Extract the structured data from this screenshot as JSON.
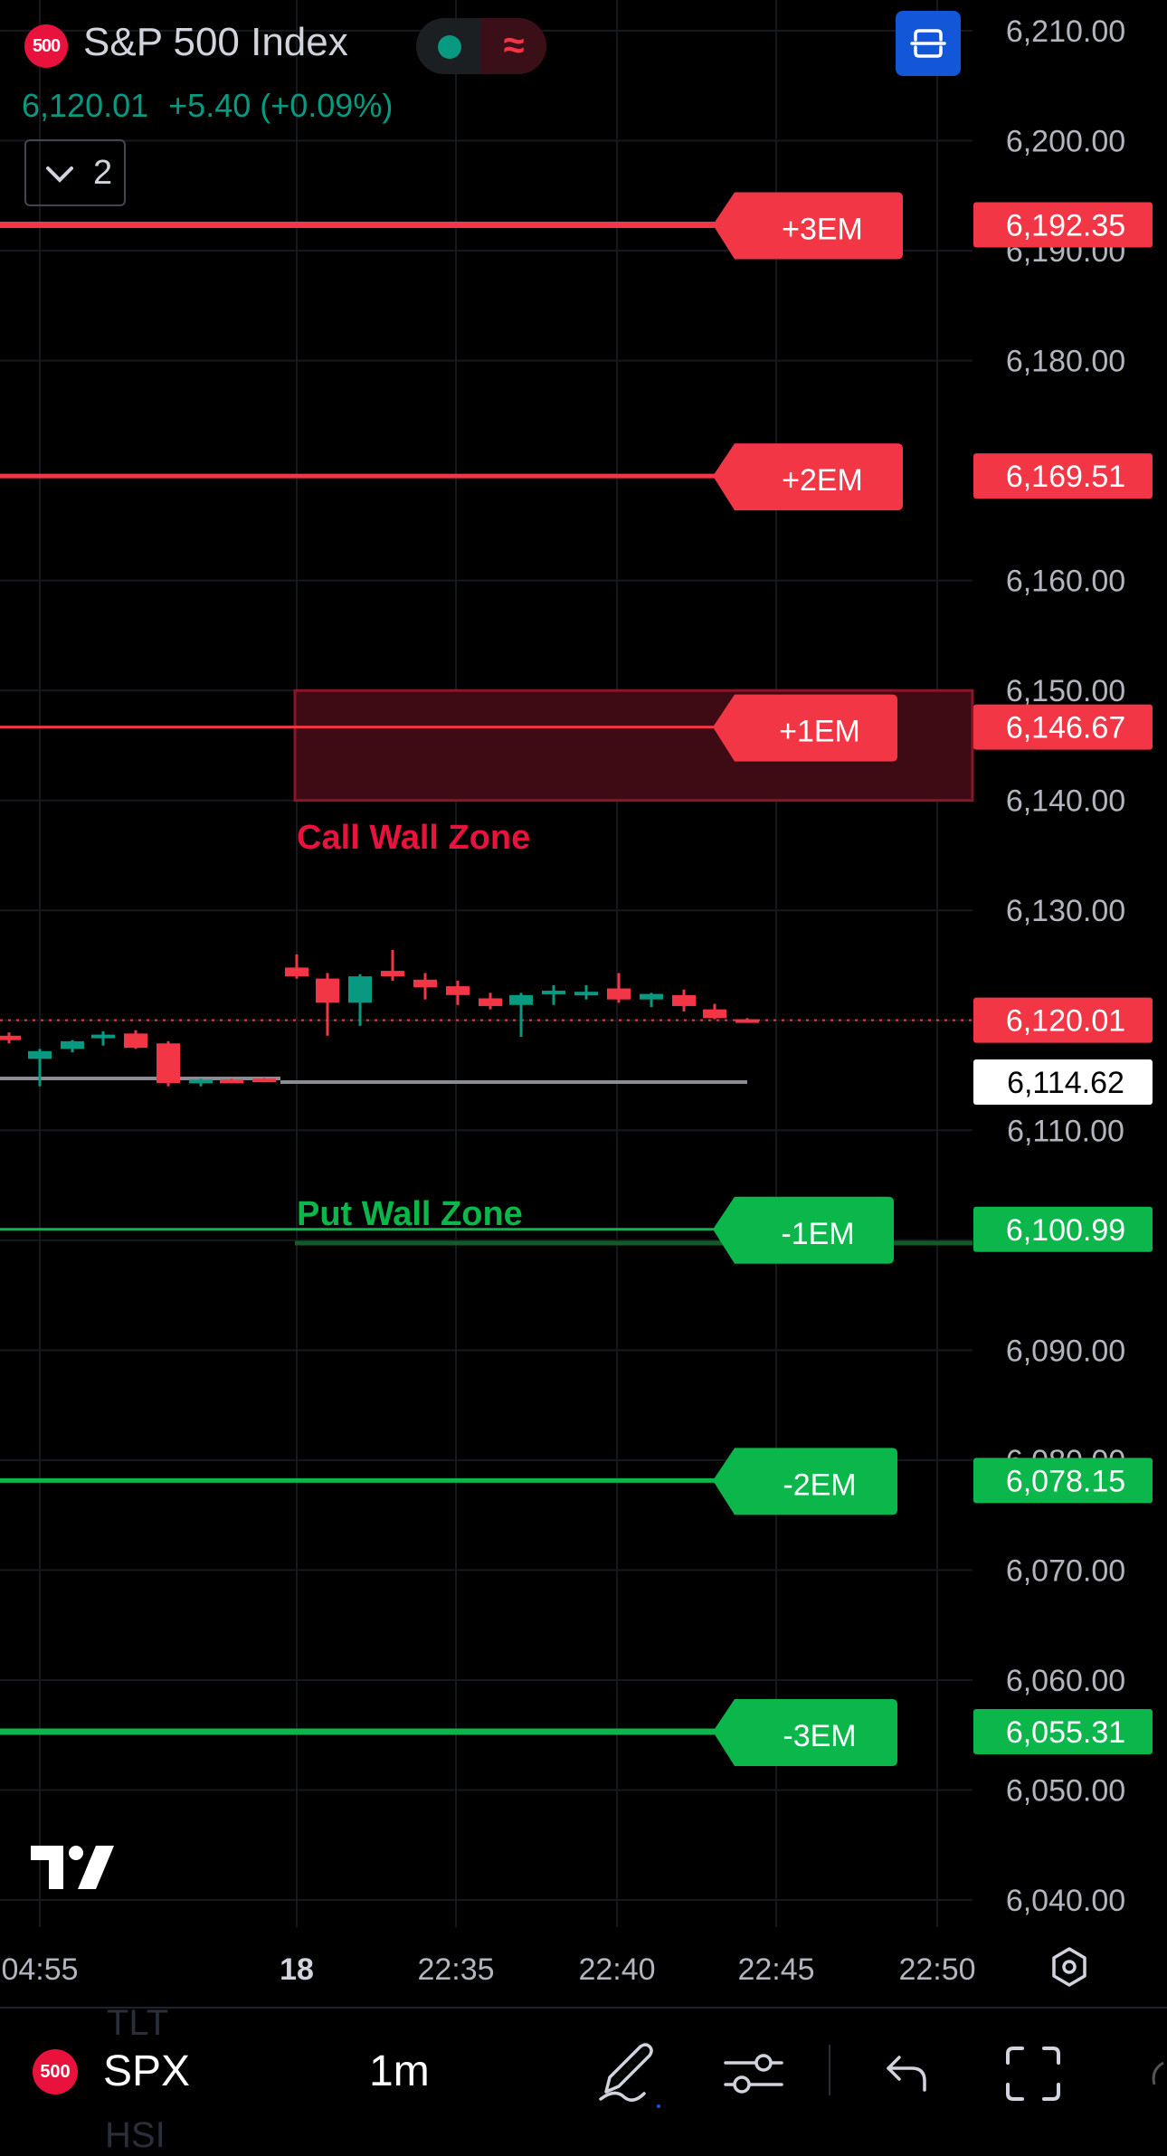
{
  "header": {
    "symbol_badge": "500",
    "title": "S&P 500 Index",
    "price": "6,120.01",
    "change": "+5.40 (+0.09%)",
    "collapse_count": "2"
  },
  "chart_data": {
    "type": "candlestick",
    "y_axis": {
      "range": [
        6036,
        6213
      ],
      "ticks": [
        "6,210.00",
        "6,200.00",
        "6,190.00",
        "6,180.00",
        "6,160.00",
        "6,150.00",
        "6,140.00",
        "6,130.00",
        "6,110.00",
        "6,090.00",
        "6,080.00",
        "6,070.00",
        "6,060.00",
        "6,050.00",
        "6,040.00"
      ],
      "tick_values": [
        6210,
        6200,
        6190,
        6180,
        6160,
        6150,
        6140,
        6130,
        6110,
        6090,
        6080,
        6070,
        6060,
        6050,
        6040
      ]
    },
    "x_axis": {
      "ticks": [
        "04:55",
        "18",
        "22:35",
        "22:40",
        "22:45",
        "22:50"
      ],
      "bold_tick": "18"
    },
    "levels": [
      {
        "label": "+3EM",
        "price": 6192.35,
        "price_label": "6,192.35",
        "color": "#f23645"
      },
      {
        "label": "+2EM",
        "price": 6169.51,
        "price_label": "6,169.51",
        "color": "#f23645"
      },
      {
        "label": "+1EM",
        "price": 6146.67,
        "price_label": "6,146.67",
        "color": "#f23645"
      },
      {
        "label": "-1EM",
        "price": 6100.99,
        "price_label": "6,100.99",
        "color": "#0bb74a"
      },
      {
        "label": "-2EM",
        "price": 6078.15,
        "price_label": "6,078.15",
        "color": "#0bb74a"
      },
      {
        "label": "-3EM",
        "price": 6055.31,
        "price_label": "6,055.31",
        "color": "#0bb74a"
      }
    ],
    "zones": [
      {
        "label": "Call Wall Zone",
        "top": 6150,
        "bottom": 6140,
        "color": "#e8123c"
      },
      {
        "label": "Put Wall Zone",
        "price": 6100,
        "color": "#0bb74a"
      }
    ],
    "current_price": {
      "value": 6120.01,
      "label": "6,120.01",
      "color": "#f23645"
    },
    "reference_price": {
      "value": 6114.62,
      "label": "6,114.62"
    },
    "candles": [
      {
        "o": 6118.6,
        "h": 6118.9,
        "l": 6117.9,
        "c": 6118.2
      },
      {
        "o": 6116.5,
        "h": 6117.4,
        "l": 6114.0,
        "c": 6117.2
      },
      {
        "o": 6117.4,
        "h": 6118.2,
        "l": 6117.1,
        "c": 6118.1
      },
      {
        "o": 6118.5,
        "h": 6119.0,
        "l": 6117.7,
        "c": 6118.7
      },
      {
        "o": 6118.8,
        "h": 6119.1,
        "l": 6117.4,
        "c": 6117.5
      },
      {
        "o": 6117.9,
        "h": 6118.1,
        "l": 6114.0,
        "c": 6114.3
      },
      {
        "o": 6114.3,
        "h": 6114.7,
        "l": 6114.0,
        "c": 6114.6
      },
      {
        "o": 6114.6,
        "h": 6114.7,
        "l": 6114.3,
        "c": 6114.5
      },
      {
        "o": 6114.7,
        "h": 6114.8,
        "l": 6114.5,
        "c": 6114.6
      },
      {
        "o": 6124.8,
        "h": 6126.0,
        "l": 6123.8,
        "c": 6124.0
      },
      {
        "o": 6123.8,
        "h": 6124.3,
        "l": 6118.6,
        "c": 6121.6
      },
      {
        "o": 6121.6,
        "h": 6124.2,
        "l": 6119.5,
        "c": 6124.0
      },
      {
        "o": 6124.5,
        "h": 6126.4,
        "l": 6123.6,
        "c": 6124.0
      },
      {
        "o": 6123.7,
        "h": 6124.3,
        "l": 6121.9,
        "c": 6123.0
      },
      {
        "o": 6123.1,
        "h": 6123.6,
        "l": 6121.4,
        "c": 6122.3
      },
      {
        "o": 6122.0,
        "h": 6122.5,
        "l": 6121.0,
        "c": 6121.3
      },
      {
        "o": 6121.4,
        "h": 6122.5,
        "l": 6118.5,
        "c": 6122.3
      },
      {
        "o": 6122.6,
        "h": 6123.2,
        "l": 6121.4,
        "c": 6122.7
      },
      {
        "o": 6122.6,
        "h": 6123.2,
        "l": 6121.9,
        "c": 6122.6
      },
      {
        "o": 6122.9,
        "h": 6124.3,
        "l": 6121.6,
        "c": 6121.9
      },
      {
        "o": 6121.9,
        "h": 6122.5,
        "l": 6121.2,
        "c": 6122.4
      },
      {
        "o": 6122.3,
        "h": 6122.8,
        "l": 6120.8,
        "c": 6121.3
      },
      {
        "o": 6121.0,
        "h": 6121.5,
        "l": 6120.1,
        "c": 6120.2
      },
      {
        "o": 6120.1,
        "h": 6120.2,
        "l": 6120.0,
        "c": 6120.0
      }
    ]
  },
  "bottom_bar": {
    "symbol_badge": "500",
    "symbol": "SPX",
    "timeframe": "1m",
    "ghost_top": "TLT",
    "ghost_bottom": "HSI"
  },
  "colors": {
    "bearish": "#f23645",
    "bullish": "#089981",
    "call_zone": "#e8123c",
    "put_zone": "#0bb74a",
    "accent": "#1356d8"
  },
  "icons": [
    "wave-icon",
    "expand-icon",
    "chevron-down-icon",
    "settings-hex-icon",
    "pen-icon",
    "indicator-sliders-icon",
    "undo-icon",
    "fullscreen-icon",
    "tradingview-logo"
  ]
}
